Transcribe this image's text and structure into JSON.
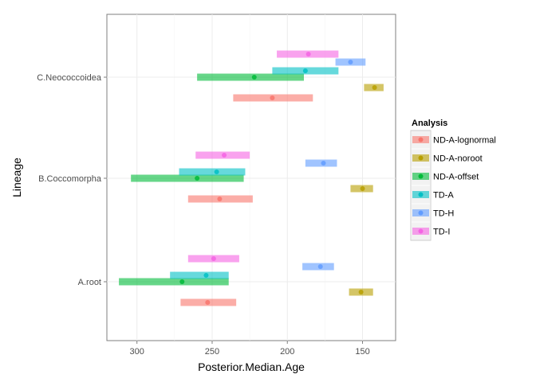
{
  "chart_data": {
    "type": "range-dot",
    "xlabel": "Posterior.Median.Age",
    "ylabel": "Lineage",
    "x_reversed": true,
    "xlim": [
      320,
      128
    ],
    "x_ticks": [
      300,
      250,
      200,
      150
    ],
    "x_tick_labels": [
      "300",
      "250",
      "200",
      "150"
    ],
    "categories": [
      "A.root",
      "B.Coccomorpha",
      "C.Neococcoidea"
    ],
    "grid": true,
    "legend": {
      "title": "Analysis",
      "position": "right"
    },
    "series": [
      {
        "name": "ND-A-lognormal",
        "color": "#F8766D",
        "data": [
          {
            "category": "A.root",
            "median": 253,
            "low": 234,
            "high": 271
          },
          {
            "category": "B.Coccomorpha",
            "median": 245,
            "low": 223,
            "high": 266
          },
          {
            "category": "C.Neococcoidea",
            "median": 210,
            "low": 183,
            "high": 236
          }
        ]
      },
      {
        "name": "ND-A-noroot",
        "color": "#B79F00",
        "data": [
          {
            "category": "A.root",
            "median": 151,
            "low": 143,
            "high": 159
          },
          {
            "category": "B.Coccomorpha",
            "median": 150,
            "low": 143,
            "high": 158
          },
          {
            "category": "C.Neococcoidea",
            "median": 142,
            "low": 136,
            "high": 149
          }
        ]
      },
      {
        "name": "ND-A-offset",
        "color": "#00BA38",
        "data": [
          {
            "category": "A.root",
            "median": 270,
            "low": 239,
            "high": 312
          },
          {
            "category": "B.Coccomorpha",
            "median": 260,
            "low": 229,
            "high": 304
          },
          {
            "category": "C.Neococcoidea",
            "median": 222,
            "low": 189,
            "high": 260
          }
        ]
      },
      {
        "name": "TD-A",
        "color": "#00BFC4",
        "data": [
          {
            "category": "A.root",
            "median": 254,
            "low": 239,
            "high": 278
          },
          {
            "category": "B.Coccomorpha",
            "median": 247,
            "low": 228,
            "high": 272
          },
          {
            "category": "C.Neococcoidea",
            "median": 188,
            "low": 166,
            "high": 210
          }
        ]
      },
      {
        "name": "TD-H",
        "color": "#619CFF",
        "data": [
          {
            "category": "A.root",
            "median": 178,
            "low": 169,
            "high": 190
          },
          {
            "category": "B.Coccomorpha",
            "median": 176,
            "low": 167,
            "high": 188
          },
          {
            "category": "C.Neococcoidea",
            "median": 158,
            "low": 148,
            "high": 168
          }
        ]
      },
      {
        "name": "TD-I",
        "color": "#F564E3",
        "data": [
          {
            "category": "A.root",
            "median": 249,
            "low": 232,
            "high": 266
          },
          {
            "category": "B.Coccomorpha",
            "median": 242,
            "low": 225,
            "high": 261
          },
          {
            "category": "C.Neococcoidea",
            "median": 186,
            "low": 166,
            "high": 207
          }
        ]
      }
    ]
  }
}
